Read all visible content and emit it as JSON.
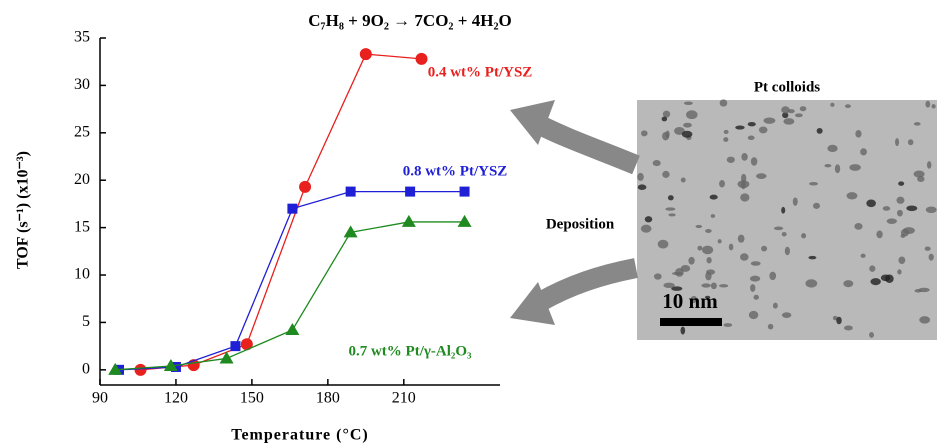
{
  "chart_data": {
    "type": "line",
    "title": "C₇H₈ + 9O₂ → 7CO₂ + 4H₂O",
    "x_label": "Temperature (°C)",
    "y_label": "TOF (s⁻¹) (x10⁻³)",
    "xlim": [
      90,
      248
    ],
    "xticks": [
      90,
      120,
      150,
      180,
      210
    ],
    "ylim": [
      -1.6,
      35
    ],
    "yticks": [
      0,
      5,
      10,
      15,
      20,
      25,
      30,
      35
    ],
    "series": [
      {
        "name": "0.4 wt% Pt/YSZ",
        "color": "#e8201e",
        "marker": "circle",
        "x": [
          106,
          127,
          148,
          171,
          195,
          217
        ],
        "values": [
          0,
          0.5,
          2.7,
          19.3,
          33.3,
          32.8
        ]
      },
      {
        "name": "0.8 wt% Pt/YSZ",
        "color": "#1f1fd6",
        "marker": "square",
        "x": [
          97.5,
          120,
          143.5,
          166,
          189,
          212.5,
          234
        ],
        "values": [
          0,
          0.3,
          2.5,
          17,
          18.8,
          18.8,
          18.8
        ]
      },
      {
        "name": "0.7 wt% Pt/γ-Al₂O₃",
        "color": "#1f8a1f",
        "marker": "triangle",
        "x": [
          96,
          118,
          140,
          166,
          189,
          212,
          234
        ],
        "values": [
          0,
          0.4,
          1.2,
          4.2,
          14.5,
          15.6,
          15.6
        ]
      }
    ],
    "annotations": [
      "Pt colloids",
      "Deposition",
      "10 nm"
    ]
  }
}
